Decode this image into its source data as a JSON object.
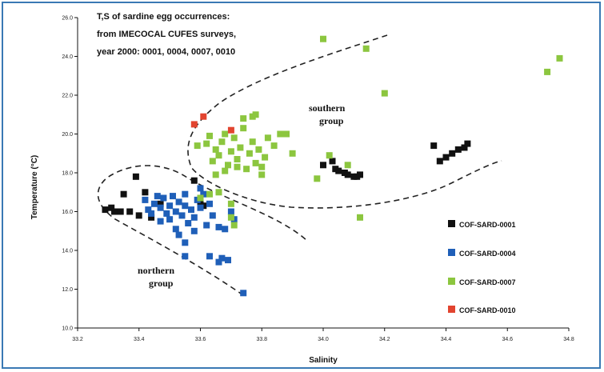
{
  "chart_data": {
    "type": "scatter",
    "title_lines": [
      "T,S of sardine egg occurrences:",
      "from IMECOCAL CUFES surveys,",
      "year 2000: 0001, 0004, 0007, 0010"
    ],
    "xlabel": "Salinity",
    "ylabel": "Temperature (°C)",
    "xlim": [
      33.2,
      34.8
    ],
    "ylim": [
      10.0,
      26.0
    ],
    "x_ticks": [
      "33.2",
      "33.4",
      "33.6",
      "33.8",
      "34.0",
      "34.2",
      "34.4",
      "34.6",
      "34.8"
    ],
    "y_ticks": [
      "10.0",
      "12.0",
      "14.0",
      "16.0",
      "18.0",
      "20.0",
      "22.0",
      "24.0",
      "26.0"
    ],
    "grid": false,
    "legend_position": "right",
    "annotations": [
      {
        "lines": [
          "southern",
          "group"
        ],
        "x": 33.96,
        "y": 20.6
      },
      {
        "lines": [
          "northern",
          "group"
        ],
        "x": 33.5,
        "y": 12.6
      }
    ],
    "series": [
      {
        "name": "COF-SARD-0001",
        "color": "#111111",
        "points": [
          [
            33.29,
            16.1
          ],
          [
            33.31,
            16.2
          ],
          [
            33.32,
            16.0
          ],
          [
            33.34,
            16.0
          ],
          [
            33.35,
            16.9
          ],
          [
            33.37,
            16.0
          ],
          [
            33.39,
            17.8
          ],
          [
            33.4,
            15.8
          ],
          [
            33.42,
            17.0
          ],
          [
            33.44,
            15.7
          ],
          [
            33.47,
            16.4
          ],
          [
            33.58,
            17.6
          ],
          [
            33.6,
            16.5
          ],
          [
            33.61,
            16.3
          ],
          [
            34.0,
            18.4
          ],
          [
            34.03,
            18.6
          ],
          [
            34.04,
            18.2
          ],
          [
            34.05,
            18.1
          ],
          [
            34.07,
            18.0
          ],
          [
            34.08,
            17.9
          ],
          [
            34.1,
            17.8
          ],
          [
            34.11,
            17.8
          ],
          [
            34.12,
            17.9
          ],
          [
            34.36,
            19.4
          ],
          [
            34.38,
            18.6
          ],
          [
            34.4,
            18.8
          ],
          [
            34.42,
            19.0
          ],
          [
            34.44,
            19.2
          ],
          [
            34.46,
            19.3
          ],
          [
            34.47,
            19.5
          ]
        ]
      },
      {
        "name": "COF-SARD-0004",
        "color": "#1f5fb8",
        "points": [
          [
            33.42,
            16.6
          ],
          [
            33.43,
            16.1
          ],
          [
            33.44,
            15.9
          ],
          [
            33.45,
            16.4
          ],
          [
            33.46,
            16.8
          ],
          [
            33.47,
            15.5
          ],
          [
            33.47,
            16.2
          ],
          [
            33.48,
            16.7
          ],
          [
            33.49,
            15.9
          ],
          [
            33.5,
            16.3
          ],
          [
            33.5,
            15.6
          ],
          [
            33.51,
            16.8
          ],
          [
            33.52,
            16.0
          ],
          [
            33.52,
            15.1
          ],
          [
            33.53,
            16.5
          ],
          [
            33.54,
            15.8
          ],
          [
            33.55,
            16.3
          ],
          [
            33.55,
            16.9
          ],
          [
            33.56,
            15.4
          ],
          [
            33.57,
            16.1
          ],
          [
            33.58,
            15.7
          ],
          [
            33.59,
            16.6
          ],
          [
            33.6,
            16.2
          ],
          [
            33.6,
            17.2
          ],
          [
            33.61,
            16.9
          ],
          [
            33.62,
            15.3
          ],
          [
            33.63,
            16.4
          ],
          [
            33.64,
            15.8
          ],
          [
            33.66,
            15.2
          ],
          [
            33.68,
            15.1
          ],
          [
            33.7,
            16.0
          ],
          [
            33.71,
            15.6
          ],
          [
            33.53,
            14.8
          ],
          [
            33.55,
            14.4
          ],
          [
            33.58,
            15.0
          ],
          [
            33.63,
            13.7
          ],
          [
            33.66,
            13.4
          ],
          [
            33.67,
            13.6
          ],
          [
            33.69,
            13.5
          ],
          [
            33.55,
            13.7
          ],
          [
            33.74,
            11.8
          ]
        ]
      },
      {
        "name": "COF-SARD-0007",
        "color": "#8cc63f",
        "points": [
          [
            33.59,
            19.4
          ],
          [
            33.62,
            19.5
          ],
          [
            33.63,
            19.9
          ],
          [
            33.64,
            18.6
          ],
          [
            33.65,
            19.2
          ],
          [
            33.66,
            18.9
          ],
          [
            33.67,
            19.6
          ],
          [
            33.68,
            20.0
          ],
          [
            33.69,
            18.4
          ],
          [
            33.7,
            19.1
          ],
          [
            33.71,
            19.8
          ],
          [
            33.72,
            18.7
          ],
          [
            33.73,
            19.3
          ],
          [
            33.74,
            20.3
          ],
          [
            33.75,
            18.2
          ],
          [
            33.76,
            19.0
          ],
          [
            33.77,
            19.6
          ],
          [
            33.78,
            18.5
          ],
          [
            33.79,
            19.2
          ],
          [
            33.8,
            18.3
          ],
          [
            33.81,
            18.8
          ],
          [
            33.82,
            19.8
          ],
          [
            33.84,
            19.4
          ],
          [
            33.86,
            20.0
          ],
          [
            33.88,
            20.0
          ],
          [
            33.9,
            19.0
          ],
          [
            33.65,
            17.9
          ],
          [
            33.68,
            18.1
          ],
          [
            33.72,
            18.3
          ],
          [
            33.74,
            20.8
          ],
          [
            33.77,
            20.9
          ],
          [
            33.8,
            17.9
          ],
          [
            33.6,
            16.7
          ],
          [
            33.63,
            16.9
          ],
          [
            33.66,
            17.0
          ],
          [
            33.7,
            16.4
          ],
          [
            33.7,
            15.7
          ],
          [
            33.71,
            15.3
          ],
          [
            33.98,
            17.7
          ],
          [
            34.02,
            18.9
          ],
          [
            34.08,
            18.4
          ],
          [
            34.12,
            15.7
          ],
          [
            33.78,
            21.0
          ],
          [
            34.0,
            24.9
          ],
          [
            34.14,
            24.4
          ],
          [
            34.2,
            22.1
          ],
          [
            34.73,
            23.2
          ],
          [
            34.77,
            23.9
          ]
        ]
      },
      {
        "name": "COF-SARD-0010",
        "color": "#e2442f",
        "points": [
          [
            33.58,
            20.5
          ],
          [
            33.61,
            20.9
          ],
          [
            33.7,
            20.2
          ]
        ]
      }
    ]
  }
}
